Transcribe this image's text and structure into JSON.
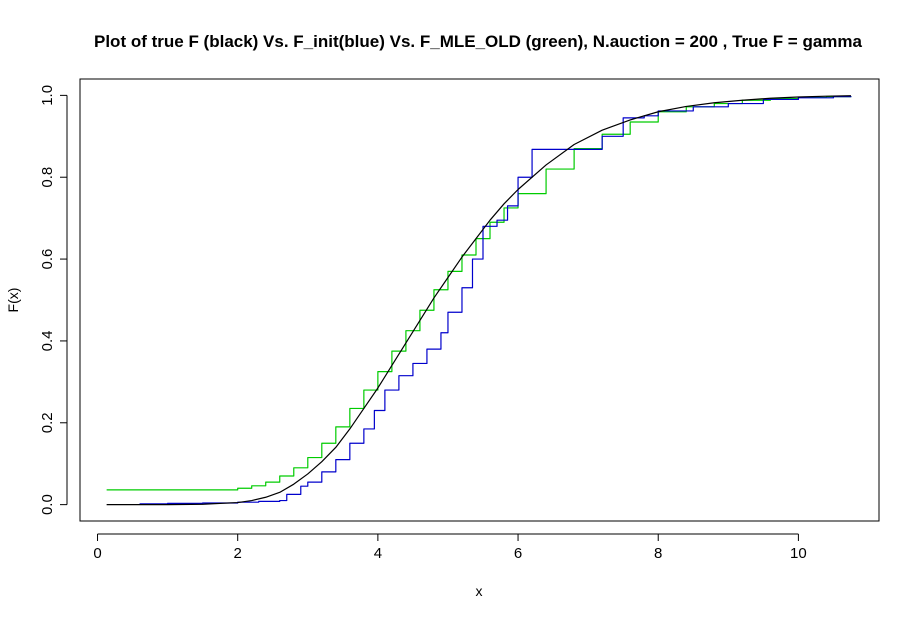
{
  "chart_data": {
    "type": "line",
    "title": "Plot of true F (black) Vs. F_init(blue) Vs. F_MLE_OLD (green), N.auction = 200 , True F = gamma",
    "xlabel": "x",
    "ylabel": "F(x)",
    "xlim": [
      -0.25,
      11.15
    ],
    "ylim": [
      -0.04,
      1.04
    ],
    "xticks": [
      0,
      2,
      4,
      6,
      8,
      10
    ],
    "yticks": [
      0.0,
      0.2,
      0.4,
      0.6,
      0.8,
      1.0
    ],
    "xtick_labels": [
      "0",
      "2",
      "4",
      "6",
      "8",
      "10"
    ],
    "ytick_labels": [
      "0.0",
      "0.2",
      "0.4",
      "0.6",
      "0.8",
      "1.0"
    ],
    "grid": false,
    "series": [
      {
        "name": "F_MLE_OLD",
        "color": "#00cc00",
        "x": [
          0.13,
          1.0,
          1.5,
          1.9,
          2.0,
          2.2,
          2.4,
          2.6,
          2.8,
          3.0,
          3.2,
          3.4,
          3.6,
          3.8,
          4.0,
          4.2,
          4.4,
          4.6,
          4.8,
          5.0,
          5.2,
          5.4,
          5.6,
          5.8,
          6.0,
          6.4,
          6.8,
          7.2,
          7.6,
          8.0,
          8.4,
          8.8,
          9.2,
          9.6,
          10.0,
          10.4,
          10.75
        ],
        "y": [
          0.036,
          0.036,
          0.036,
          0.036,
          0.04,
          0.046,
          0.055,
          0.07,
          0.09,
          0.115,
          0.15,
          0.19,
          0.235,
          0.28,
          0.325,
          0.375,
          0.425,
          0.475,
          0.525,
          0.57,
          0.61,
          0.65,
          0.69,
          0.725,
          0.76,
          0.82,
          0.87,
          0.905,
          0.935,
          0.96,
          0.972,
          0.98,
          0.988,
          0.992,
          0.995,
          0.997,
          0.998
        ]
      },
      {
        "name": "F_init",
        "color": "#0000cc",
        "x": [
          0.6,
          1.0,
          1.5,
          2.0,
          2.3,
          2.6,
          2.7,
          2.9,
          3.0,
          3.2,
          3.4,
          3.6,
          3.8,
          3.95,
          4.1,
          4.3,
          4.5,
          4.7,
          4.9,
          5.0,
          5.2,
          5.35,
          5.5,
          5.7,
          5.85,
          6.0,
          6.2,
          6.5,
          6.8,
          7.0,
          7.2,
          7.5,
          7.8,
          8.0,
          8.5,
          9.0,
          9.5,
          10.0,
          10.5,
          10.75
        ],
        "y": [
          0.002,
          0.003,
          0.004,
          0.006,
          0.008,
          0.01,
          0.025,
          0.045,
          0.055,
          0.08,
          0.11,
          0.15,
          0.185,
          0.23,
          0.28,
          0.315,
          0.345,
          0.38,
          0.42,
          0.47,
          0.53,
          0.6,
          0.68,
          0.695,
          0.73,
          0.8,
          0.868,
          0.868,
          0.868,
          0.868,
          0.9,
          0.945,
          0.95,
          0.962,
          0.972,
          0.98,
          0.99,
          0.994,
          0.997,
          0.998
        ]
      },
      {
        "name": "true F",
        "color": "#000000",
        "x": [
          0.13,
          1.0,
          1.5,
          2.0,
          2.2,
          2.4,
          2.6,
          2.8,
          3.0,
          3.2,
          3.4,
          3.6,
          3.8,
          4.0,
          4.2,
          4.4,
          4.6,
          4.8,
          5.0,
          5.2,
          5.4,
          5.6,
          5.8,
          6.0,
          6.4,
          6.8,
          7.2,
          7.6,
          8.0,
          8.4,
          8.8,
          9.2,
          9.6,
          10.0,
          10.4,
          10.75
        ],
        "y": [
          0.0,
          0.0,
          0.001,
          0.005,
          0.01,
          0.018,
          0.03,
          0.05,
          0.075,
          0.105,
          0.14,
          0.185,
          0.235,
          0.285,
          0.34,
          0.395,
          0.45,
          0.505,
          0.555,
          0.605,
          0.65,
          0.695,
          0.735,
          0.77,
          0.83,
          0.88,
          0.915,
          0.94,
          0.96,
          0.973,
          0.982,
          0.988,
          0.993,
          0.996,
          0.998,
          0.999
        ]
      }
    ]
  }
}
